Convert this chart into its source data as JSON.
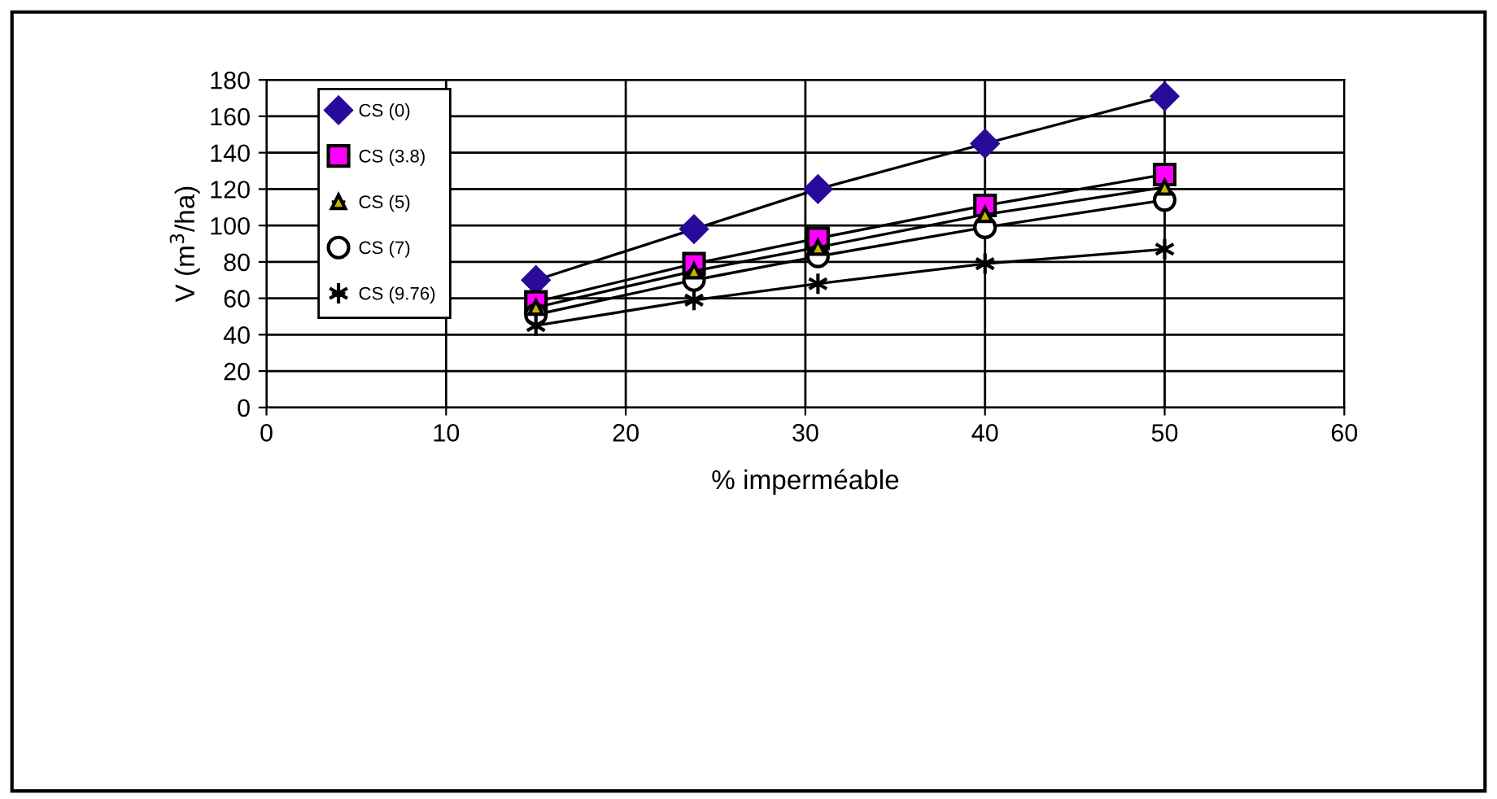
{
  "chart_data": {
    "type": "line",
    "xlabel": "% imperméable",
    "ylabel": "V (m$^{3}$/ha)",
    "x": [
      15,
      23.8,
      30.7,
      40,
      50
    ],
    "series": [
      {
        "name": "CS (0)",
        "color": "#2a0a9a",
        "marker": "diamond",
        "values": [
          70,
          98,
          120,
          145,
          171
        ]
      },
      {
        "name": "CS (3.8)",
        "color": "#ff00ff",
        "marker": "square",
        "values": [
          58,
          79,
          93,
          111,
          128
        ]
      },
      {
        "name": "CS (5)",
        "color": "#c8b400",
        "marker": "triangle",
        "values": [
          55,
          75,
          88,
          106,
          121
        ]
      },
      {
        "name": "CS (7)",
        "color": "#ffffff",
        "marker": "circle",
        "values": [
          51,
          70,
          83,
          99,
          114
        ]
      },
      {
        "name": "CS (9.76)",
        "color": "#000000",
        "marker": "cross",
        "values": [
          45,
          59,
          68,
          79,
          87
        ]
      }
    ],
    "xlim": [
      0,
      60
    ],
    "xticks": [
      0,
      10,
      20,
      30,
      40,
      50,
      60
    ],
    "ylim": [
      0,
      180
    ],
    "yticks": [
      0,
      20,
      40,
      60,
      80,
      100,
      120,
      140,
      160,
      180
    ],
    "grid": true,
    "legend": "top left",
    "line_style": "solid"
  }
}
